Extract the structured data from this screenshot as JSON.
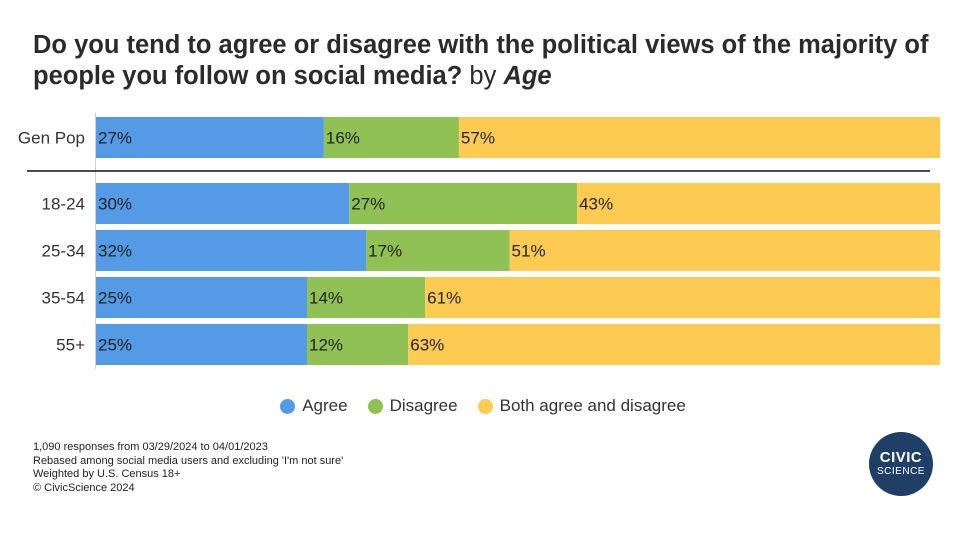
{
  "title": {
    "main": "Do you tend to agree or disagree with the political views of the majority of people you follow on social media?",
    "by_text": "by",
    "by_value": "Age"
  },
  "chart_data": {
    "type": "bar",
    "orientation": "horizontal",
    "stacked": true,
    "categories": [
      "Gen Pop",
      "18-24",
      "25-34",
      "35-54",
      "55+"
    ],
    "series": [
      {
        "name": "Agree",
        "color": "#559ae5",
        "values": [
          27,
          30,
          32,
          25,
          25
        ]
      },
      {
        "name": "Disagree",
        "color": "#8fc154",
        "values": [
          16,
          27,
          17,
          14,
          12
        ]
      },
      {
        "name": "Both agree and disagree",
        "color": "#fecb52",
        "values": [
          57,
          43,
          51,
          61,
          63
        ]
      }
    ],
    "value_suffix": "%",
    "xlim": [
      0,
      100
    ],
    "legend_position": "bottom-center"
  },
  "legend": [
    {
      "label": "Agree",
      "color": "#559ae5"
    },
    {
      "label": "Disagree",
      "color": "#8fc154"
    },
    {
      "label": "Both agree and disagree",
      "color": "#fecb52"
    }
  ],
  "footnotes": [
    "1,090 responses from 03/29/2024 to 04/01/2023",
    "Rebased among social media users and excluding 'I'm not sure'",
    "Weighted by U.S. Census 18+",
    "© CivicScience 2024"
  ],
  "logo": {
    "line1": "CIVIC",
    "line2": "SCIENCE",
    "color": "#1f3f66"
  }
}
